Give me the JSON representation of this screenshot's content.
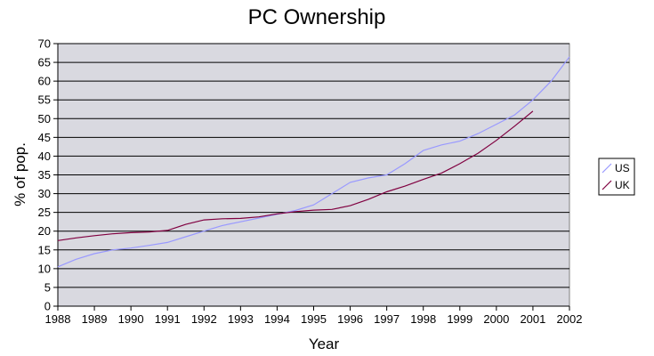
{
  "chart_data": {
    "type": "line",
    "title": "PC Ownership",
    "xlabel": "Year",
    "ylabel": "% of pop.",
    "xlim": [
      1988,
      2002
    ],
    "ylim": [
      0,
      70
    ],
    "x_ticks": [
      "1988",
      "1989",
      "1990",
      "1991",
      "1992",
      "1993",
      "1994",
      "1995",
      "1996",
      "1997",
      "1998",
      "1999",
      "2000",
      "2001",
      "2002"
    ],
    "y_ticks": [
      "0",
      "5",
      "10",
      "15",
      "20",
      "25",
      "30",
      "35",
      "40",
      "45",
      "50",
      "55",
      "60",
      "65",
      "70"
    ],
    "grid": "horizontal",
    "legend_position": "right",
    "series": [
      {
        "name": "US",
        "color": "#9999ff",
        "points": [
          [
            1988,
            10.5
          ],
          [
            1988.5,
            12.5
          ],
          [
            1989,
            14.0
          ],
          [
            1989.5,
            15.0
          ],
          [
            1990,
            15.5
          ],
          [
            1990.5,
            16.2
          ],
          [
            1991,
            17.0
          ],
          [
            1991.5,
            18.5
          ],
          [
            1992,
            20.0
          ],
          [
            1992.5,
            21.5
          ],
          [
            1993,
            22.5
          ],
          [
            1993.5,
            23.5
          ],
          [
            1994,
            24.5
          ],
          [
            1994.5,
            25.5
          ],
          [
            1995,
            27.0
          ],
          [
            1995.5,
            30.0
          ],
          [
            1996,
            33.0
          ],
          [
            1996.5,
            34.2
          ],
          [
            1997,
            35.0
          ],
          [
            1997.5,
            38.0
          ],
          [
            1998,
            41.5
          ],
          [
            1998.5,
            43.0
          ],
          [
            1999,
            44.0
          ],
          [
            1999.5,
            46.0
          ],
          [
            2000,
            48.5
          ],
          [
            2000.5,
            51.0
          ],
          [
            2001,
            55.0
          ],
          [
            2001.5,
            60.0
          ],
          [
            2002,
            66.5
          ]
        ]
      },
      {
        "name": "UK",
        "color": "#800040",
        "points": [
          [
            1988,
            17.5
          ],
          [
            1988.5,
            18.2
          ],
          [
            1989,
            18.8
          ],
          [
            1989.5,
            19.3
          ],
          [
            1990,
            19.6
          ],
          [
            1990.5,
            19.8
          ],
          [
            1991,
            20.2
          ],
          [
            1991.5,
            21.8
          ],
          [
            1992,
            23.0
          ],
          [
            1992.5,
            23.3
          ],
          [
            1993,
            23.4
          ],
          [
            1993.5,
            23.8
          ],
          [
            1994,
            24.6
          ],
          [
            1994.5,
            25.2
          ],
          [
            1995,
            25.6
          ],
          [
            1995.5,
            25.8
          ],
          [
            1996,
            26.8
          ],
          [
            1996.5,
            28.5
          ],
          [
            1997,
            30.5
          ],
          [
            1997.5,
            32.0
          ],
          [
            1998,
            33.8
          ],
          [
            1998.5,
            35.5
          ],
          [
            1999,
            38.0
          ],
          [
            1999.5,
            40.8
          ],
          [
            2000,
            44.2
          ],
          [
            2000.5,
            48.0
          ],
          [
            2001,
            52.0
          ]
        ]
      }
    ],
    "legend": [
      "US",
      "UK"
    ],
    "plot_background": "#d9d9e0"
  }
}
